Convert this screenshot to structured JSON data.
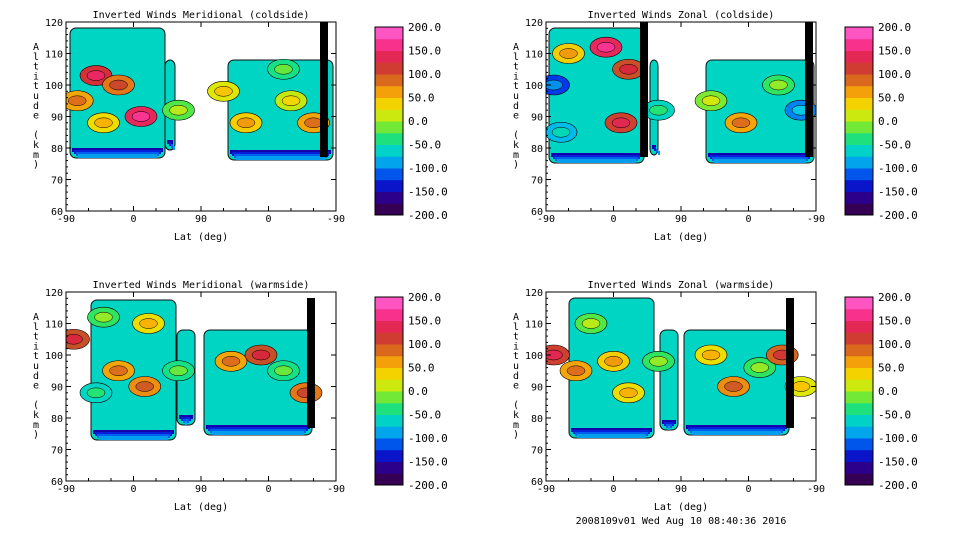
{
  "footer": "2008109v01 Wed Aug 10 08:40:36 2016",
  "chart_data": [
    {
      "type": "heatmap",
      "title": "Inverted Winds Meridional (coldside)",
      "xlabel": "Lat (deg)",
      "ylabel": "Altitude (km)",
      "xticks": [
        "-90",
        "0",
        "90",
        "0",
        "-90"
      ],
      "yticks": [
        "60",
        "70",
        "80",
        "90",
        "100",
        "110",
        "120"
      ],
      "ylim": [
        60,
        120
      ],
      "colorbar": {
        "min": -200,
        "max": 200,
        "labels": [
          "200.0",
          "150.0",
          "100.0",
          "50.0",
          "0.0",
          "-50.0",
          "-100.0",
          "-150.0",
          "-200.0"
        ]
      },
      "cells": [
        {
          "lat": -75,
          "alt": 95,
          "value": 60
        },
        {
          "lat": -50,
          "alt": 103,
          "value": 120
        },
        {
          "lat": -20,
          "alt": 100,
          "value": 80
        },
        {
          "lat": 10,
          "alt": 90,
          "value": 140
        },
        {
          "lat": -40,
          "alt": 88,
          "value": 30
        },
        {
          "lat": 60,
          "alt": 92,
          "value": -20
        },
        {
          "lat": 120,
          "alt": 98,
          "value": 20
        },
        {
          "lat": 150,
          "alt": 88,
          "value": 40
        },
        {
          "lat": 210,
          "alt": 95,
          "value": 10
        },
        {
          "lat": 240,
          "alt": 88,
          "value": 60
        },
        {
          "lat": 200,
          "alt": 105,
          "value": -40
        }
      ]
    },
    {
      "type": "heatmap",
      "title": "Inverted Winds Zonal (coldside)",
      "xlabel": "Lat (deg)",
      "ylabel": "Altitude (km)",
      "xticks": [
        "-90",
        "0",
        "90",
        "0",
        "-90"
      ],
      "yticks": [
        "60",
        "70",
        "80",
        "90",
        "100",
        "110",
        "120"
      ],
      "ylim": [
        60,
        120
      ],
      "colorbar": {
        "min": -200,
        "max": 200,
        "labels": [
          "200.0",
          "150.0",
          "100.0",
          "50.0",
          "0.0",
          "-50.0",
          "-100.0",
          "-150.0",
          "-200.0"
        ]
      },
      "cells": [
        {
          "lat": -80,
          "alt": 100,
          "value": -120
        },
        {
          "lat": -60,
          "alt": 110,
          "value": 40
        },
        {
          "lat": -10,
          "alt": 112,
          "value": 140
        },
        {
          "lat": 20,
          "alt": 105,
          "value": 100
        },
        {
          "lat": 10,
          "alt": 88,
          "value": 110
        },
        {
          "lat": -70,
          "alt": 85,
          "value": -80
        },
        {
          "lat": 60,
          "alt": 92,
          "value": -60
        },
        {
          "lat": 130,
          "alt": 95,
          "value": -10
        },
        {
          "lat": 170,
          "alt": 88,
          "value": 60
        },
        {
          "lat": 220,
          "alt": 100,
          "value": -30
        },
        {
          "lat": 250,
          "alt": 92,
          "value": -100
        }
      ]
    },
    {
      "type": "heatmap",
      "title": "Inverted Winds Meridional (warmside)",
      "xlabel": "Lat (deg)",
      "ylabel": "Altitude (km)",
      "xticks": [
        "-90",
        "0",
        "90",
        "0",
        "-90"
      ],
      "yticks": [
        "60",
        "70",
        "80",
        "90",
        "100",
        "110",
        "120"
      ],
      "ylim": [
        60,
        120
      ],
      "colorbar": {
        "min": -200,
        "max": 200,
        "labels": [
          "200.0",
          "150.0",
          "100.0",
          "50.0",
          "0.0",
          "-50.0",
          "-100.0",
          "-150.0",
          "-200.0"
        ]
      },
      "cells": [
        {
          "lat": -80,
          "alt": 105,
          "value": 100
        },
        {
          "lat": -40,
          "alt": 112,
          "value": -30
        },
        {
          "lat": -20,
          "alt": 95,
          "value": 60
        },
        {
          "lat": 15,
          "alt": 90,
          "value": 70
        },
        {
          "lat": -50,
          "alt": 88,
          "value": -60
        },
        {
          "lat": 20,
          "alt": 110,
          "value": 30
        },
        {
          "lat": 60,
          "alt": 95,
          "value": -40
        },
        {
          "lat": 130,
          "alt": 98,
          "value": 60
        },
        {
          "lat": 170,
          "alt": 100,
          "value": 100
        },
        {
          "lat": 200,
          "alt": 95,
          "value": -40
        },
        {
          "lat": 230,
          "alt": 88,
          "value": 80
        }
      ]
    },
    {
      "type": "heatmap",
      "title": "Inverted Winds Zonal (warmside)",
      "xlabel": "Lat (deg)",
      "ylabel": "Altitude (km)",
      "xticks": [
        "-90",
        "0",
        "90",
        "0",
        "-90"
      ],
      "yticks": [
        "60",
        "70",
        "80",
        "90",
        "100",
        "110",
        "120"
      ],
      "ylim": [
        60,
        120
      ],
      "colorbar": {
        "min": -200,
        "max": 200,
        "labels": [
          "200.0",
          "150.0",
          "100.0",
          "50.0",
          "0.0",
          "-50.0",
          "-100.0",
          "-150.0",
          "-200.0"
        ]
      },
      "cells": [
        {
          "lat": -80,
          "alt": 100,
          "value": 110
        },
        {
          "lat": -50,
          "alt": 95,
          "value": 60
        },
        {
          "lat": -30,
          "alt": 110,
          "value": -20
        },
        {
          "lat": 0,
          "alt": 98,
          "value": 40
        },
        {
          "lat": 20,
          "alt": 88,
          "value": 30
        },
        {
          "lat": 60,
          "alt": 98,
          "value": -30
        },
        {
          "lat": 130,
          "alt": 100,
          "value": 30
        },
        {
          "lat": 160,
          "alt": 90,
          "value": 70
        },
        {
          "lat": 195,
          "alt": 96,
          "value": -30
        },
        {
          "lat": 225,
          "alt": 100,
          "value": 90
        },
        {
          "lat": 250,
          "alt": 90,
          "value": 20
        }
      ]
    }
  ]
}
